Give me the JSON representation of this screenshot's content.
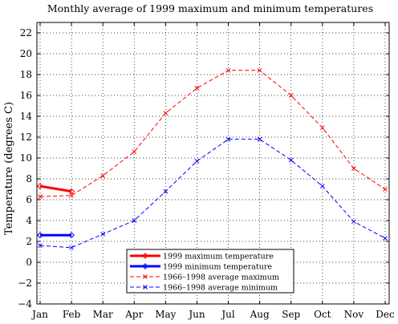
{
  "chart_data": {
    "type": "line",
    "title": "Monthly average of 1999 maximum and minimum temperatures",
    "xlabel": "",
    "ylabel": "Temperature (degrees C)",
    "categories": [
      "Jan",
      "Feb",
      "Mar",
      "Apr",
      "May",
      "Jun",
      "Jul",
      "Aug",
      "Sep",
      "Oct",
      "Nov",
      "Dec"
    ],
    "ylim": [
      -4,
      23
    ],
    "yticks": [
      -4,
      -2,
      0,
      2,
      4,
      6,
      8,
      10,
      12,
      14,
      16,
      18,
      20,
      22
    ],
    "grid": true,
    "legend": "bottom-center",
    "series": [
      {
        "name": "1999 maximum temperature",
        "color": "#ff0000",
        "style": "solid",
        "marker": "diamond",
        "values": [
          7.3,
          6.8,
          null,
          null,
          null,
          null,
          null,
          null,
          null,
          null,
          null,
          null
        ]
      },
      {
        "name": "1999 minimum temperature",
        "color": "#0000ff",
        "style": "solid",
        "marker": "diamond",
        "values": [
          2.6,
          2.6,
          null,
          null,
          null,
          null,
          null,
          null,
          null,
          null,
          null,
          null
        ]
      },
      {
        "name": "1966–1998 average maximum",
        "color": "#ff0000",
        "style": "dashed",
        "marker": "x",
        "values": [
          6.3,
          6.4,
          8.3,
          10.6,
          14.3,
          16.7,
          18.4,
          18.4,
          16.0,
          12.9,
          9.0,
          7.0
        ]
      },
      {
        "name": "1966–1998 average minimum",
        "color": "#0000ff",
        "style": "dashed",
        "marker": "x",
        "values": [
          1.6,
          1.4,
          2.7,
          4.0,
          6.8,
          9.7,
          11.8,
          11.8,
          9.8,
          7.3,
          3.9,
          2.3
        ]
      }
    ]
  }
}
